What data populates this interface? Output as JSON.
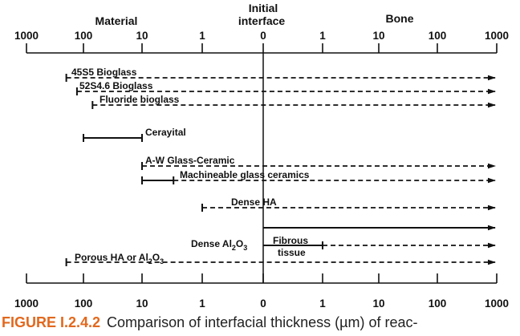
{
  "headers": {
    "material": "Material",
    "initial_line1": "Initial",
    "initial_line2": "interface",
    "bone": "Bone"
  },
  "axis_ticks": [
    "1000",
    "100",
    "10",
    "1",
    "0",
    "1",
    "10",
    "100",
    "1000"
  ],
  "bottom_axis_ticks": [
    "1000",
    "100",
    "10",
    "1",
    "0",
    "1",
    "10",
    "100",
    "1000"
  ],
  "rows": [
    {
      "label": "45S5 Bioglass",
      "start": 200,
      "solid_to": null,
      "style": "dashed"
    },
    {
      "label": "52S4.6 Bioglass",
      "start": 130,
      "solid_to": null,
      "style": "dashed"
    },
    {
      "label": "Fluoride bioglass",
      "start": 70,
      "solid_to": null,
      "style": "dashed"
    },
    {
      "label": "Cerayital",
      "start": 100,
      "solid_to": 10,
      "style": "solid"
    },
    {
      "label": "A-W Glass-Ceramic",
      "start": 10,
      "solid_to": null,
      "style": "dashed"
    },
    {
      "label": "Machineable glass ceramics",
      "start": 10,
      "solid_to": 3,
      "style": "mixed"
    },
    {
      "label": "Dense HA",
      "start": 1,
      "solid_to": null,
      "style": "dashed"
    },
    {
      "label": "",
      "start": 0,
      "solid_to": null,
      "style": "solid"
    },
    {
      "label": "Dense Al2O3",
      "start": 0,
      "solid_to": null,
      "style": "fibrous",
      "fibrous_end": 1,
      "fibrous_label_1": "Fibrous",
      "fibrous_label_2": "tissue"
    },
    {
      "label": "Porous HA or Al2O3",
      "start": 200,
      "solid_to": null,
      "style": "dashed"
    }
  ],
  "dense_al2o3": {
    "main": "Dense Al",
    "sub1": "2",
    "mid": "O",
    "sub2": "3"
  },
  "porous": {
    "main": "Porous HA or Al",
    "sub1": "2",
    "mid": "O",
    "sub2": "3"
  },
  "caption": {
    "label": "FIGURE I.2.4.2",
    "text": "Comparison of interfacial thickness (µm) of reac-"
  }
}
